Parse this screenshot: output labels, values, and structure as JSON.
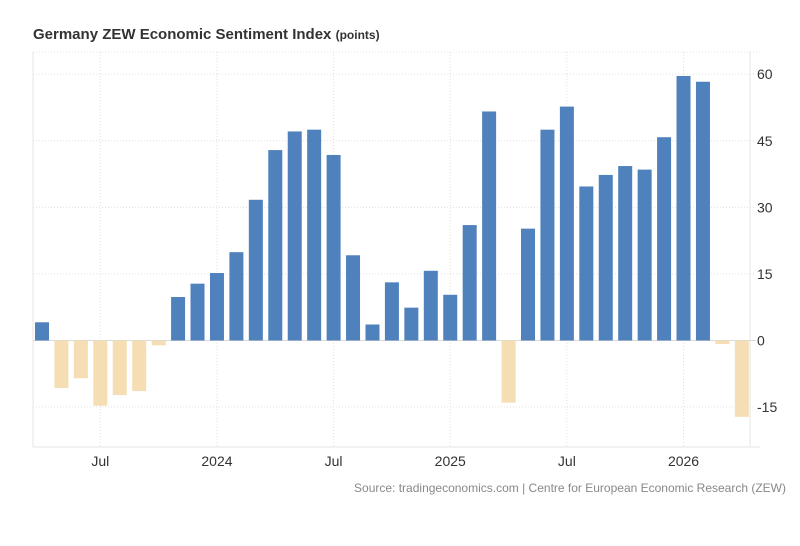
{
  "chart_data": {
    "type": "bar",
    "title": "Germany ZEW Economic Sentiment Index",
    "unit": "(points)",
    "source": "Source: tradingeconomics.com | Centre for European Economic Research (ZEW)",
    "categories": [
      "2023-04",
      "2023-05",
      "2023-06",
      "2023-07",
      "2023-08",
      "2023-09",
      "2023-10",
      "2023-11",
      "2023-12",
      "2024-01",
      "2024-02",
      "2024-03",
      "2024-04",
      "2024-05",
      "2024-06",
      "2024-07",
      "2024-08",
      "2024-09",
      "2024-10",
      "2024-11",
      "2024-12",
      "2025-01",
      "2025-02",
      "2025-03",
      "2025-04",
      "2025-05",
      "2025-06",
      "2025-07",
      "2025-08",
      "2025-09",
      "2025-10",
      "2025-11",
      "2025-12",
      "2026-01",
      "2026-02",
      "2026-03",
      "2026-04"
    ],
    "values": [
      4.1,
      -10.7,
      -8.5,
      -14.7,
      -12.3,
      -11.4,
      -1.1,
      9.8,
      12.8,
      15.2,
      19.9,
      31.7,
      42.9,
      47.1,
      47.5,
      41.8,
      19.2,
      3.6,
      13.1,
      7.4,
      15.7,
      10.3,
      26.0,
      51.6,
      -14.0,
      25.2,
      47.5,
      52.7,
      34.7,
      37.3,
      39.3,
      38.5,
      45.8,
      59.6,
      58.3,
      -0.8,
      -17.2
    ],
    "x_ticks": [
      {
        "label": "Jul",
        "index": 3
      },
      {
        "label": "2024",
        "index": 9
      },
      {
        "label": "Jul",
        "index": 15
      },
      {
        "label": "2025",
        "index": 21
      },
      {
        "label": "Jul",
        "index": 27
      },
      {
        "label": "2026",
        "index": 33
      }
    ],
    "y_ticks": [
      60,
      45,
      30,
      15,
      0,
      -15
    ],
    "ylim": [
      -24,
      65
    ],
    "grid": true,
    "colors": {
      "positive": "#4f81bd",
      "negative": "#f5deb3"
    },
    "xlabel": "",
    "ylabel": ""
  }
}
